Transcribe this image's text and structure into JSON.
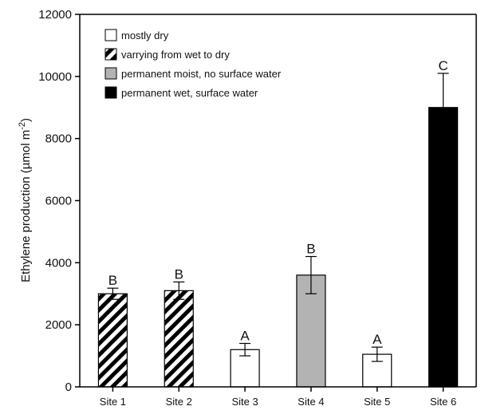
{
  "chart_data": {
    "type": "bar",
    "categories": [
      "Site 1",
      "Site 2",
      "Site 3",
      "Site 4",
      "Site 5",
      "Site 6"
    ],
    "values": [
      3000,
      3100,
      1200,
      3600,
      1050,
      9000
    ],
    "errors": [
      180,
      280,
      200,
      600,
      230,
      1100
    ],
    "significance_letters": [
      "B",
      "B",
      "A",
      "B",
      "A",
      "C"
    ],
    "bar_legend_class": [
      1,
      1,
      0,
      2,
      0,
      3
    ],
    "legend": [
      {
        "label": "mostly dry",
        "pattern": "white"
      },
      {
        "label": "varrying from wet to dry",
        "pattern": "diagonal-hatch"
      },
      {
        "label": "permanent moist, no surface water",
        "pattern": "gray"
      },
      {
        "label": "permanent wet, surface water",
        "pattern": "black"
      }
    ],
    "colors": {
      "white": "#ffffff",
      "gray": "#b3b3b3",
      "black": "#000000",
      "stroke": "#000000"
    },
    "ylabel_prefix": "Ethylene production (µmol m",
    "ylabel_sup": "-2",
    "ylabel_suffix": ")",
    "ylim": [
      0,
      12000
    ],
    "yticks": [
      "0",
      "2000",
      "4000",
      "6000",
      "8000",
      "10000",
      "12000"
    ],
    "legend_position": "top-left",
    "grid": false
  }
}
